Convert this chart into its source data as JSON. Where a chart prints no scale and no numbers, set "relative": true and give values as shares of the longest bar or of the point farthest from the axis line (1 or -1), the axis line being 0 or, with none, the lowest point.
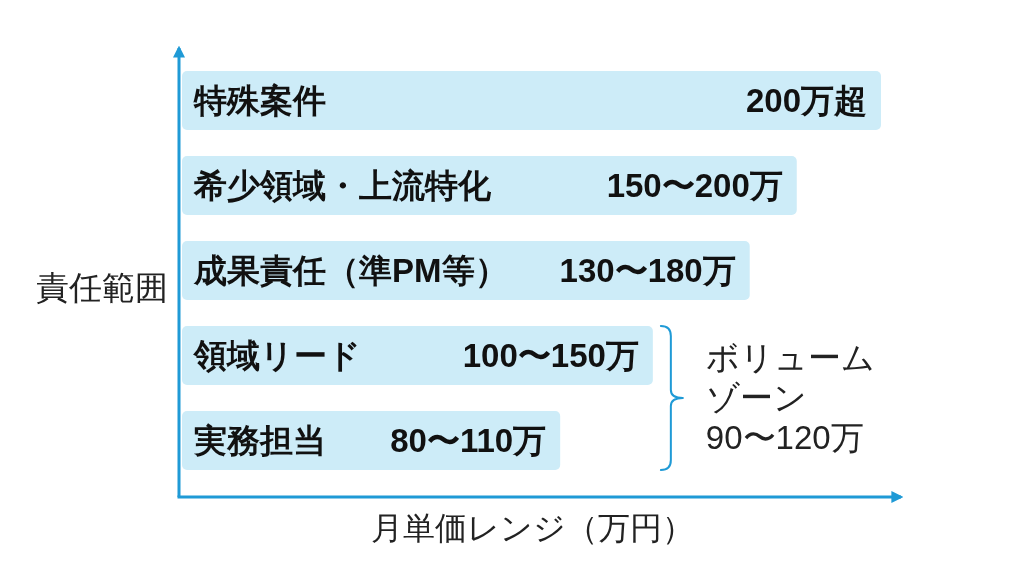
{
  "chart_data": {
    "type": "bar",
    "orientation": "horizontal",
    "relative": true,
    "categories": [
      "特殊案件",
      "希少領域・上流特化",
      "成果責任（準PM等）",
      "領域リード",
      "実務担当"
    ],
    "values": [
      1,
      0.88,
      0.813,
      0.675,
      0.543
    ],
    "color": "#cdecf8",
    "xlabel": "月単価レンジ（万円）",
    "ylabel": "責任範囲",
    "annotations": [
      {
        "text": "200万超",
        "x": 1,
        "y": "特殊案件"
      },
      {
        "text": "150〜200万",
        "x": 0.88,
        "y": "希少領域・上流特化"
      },
      {
        "text": "130〜180万",
        "x": 0.813,
        "y": "成果責任（準PM等）"
      },
      {
        "text": "100〜150万",
        "x": 0.675,
        "y": "領域リード"
      },
      {
        "text": "80〜110万",
        "x": 0.543,
        "y": "実務担当"
      },
      "ボリュームゾーン\n90〜120万"
    ]
  }
}
